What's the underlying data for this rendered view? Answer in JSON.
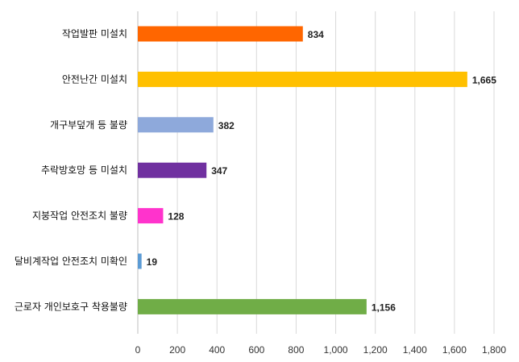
{
  "chart_data": {
    "type": "bar",
    "orientation": "horizontal",
    "categories": [
      "작업발판 미설치",
      "안전난간 미설치",
      "개구부덮개 등 불량",
      "추락방호망 등 미설치",
      "지붕작업 안전조치 불량",
      "달비계작업 안전조치 미확인",
      "근로자 개인보호구 착용불량"
    ],
    "values": [
      834,
      1665,
      382,
      347,
      128,
      19,
      1156
    ],
    "value_labels": [
      "834",
      "1,665",
      "382",
      "347",
      "128",
      "19",
      "1,156"
    ],
    "colors": [
      "#FF6600",
      "#FFC000",
      "#8EA9DB",
      "#7030A0",
      "#FF33CC",
      "#5B9BD5",
      "#70AD47"
    ],
    "xlim": [
      0,
      1800
    ],
    "ticks": [
      0,
      200,
      400,
      600,
      800,
      1000,
      1200,
      1400,
      1600,
      1800
    ],
    "tick_labels": [
      "0",
      "200",
      "400",
      "600",
      "800",
      "1,000",
      "1,200",
      "1,400",
      "1,600",
      "1,800"
    ],
    "grid": true,
    "legend": "none"
  }
}
